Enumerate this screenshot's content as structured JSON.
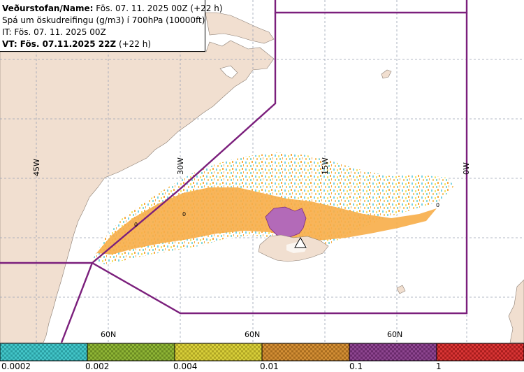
{
  "info": {
    "line1_label": "Veðurstofan/Name:",
    "line1_value": " Fös. 07. 11. 2025 00Z (+22 h)",
    "line2": "Spá um öskudreifingu (g/m3) í 700hPa (10000ft)",
    "line3": "IT: Fös. 07. 11. 2025 00Z",
    "line4_label": "VT: Fös. 07.11.2025 22Z",
    "line4_value": " (+22 h)"
  },
  "map": {
    "longitude_labels": [
      "45W",
      "30W",
      "15W",
      "0W"
    ],
    "latitude_labels": [
      "60N",
      "60N",
      "60N"
    ],
    "contour_labels": [
      "0",
      "0",
      "0"
    ],
    "colors": {
      "land": "#f1dfd0",
      "sea": "#ffffff",
      "grid": "#9aa2b4",
      "boundary": "#7b1f7c",
      "ash_low": "#f7a93e",
      "ash_mid": "#d88a2a",
      "ash_high": "#b36ab8"
    }
  },
  "legend": {
    "ticks": [
      "0.0002",
      "0.002",
      "0.004",
      "0.01",
      "0.1",
      "1"
    ],
    "colors": [
      "#44c6c9",
      "#8fb536",
      "#cfc52c",
      "#cf8b2e",
      "#8b3c8b",
      "#d42c2c"
    ]
  }
}
